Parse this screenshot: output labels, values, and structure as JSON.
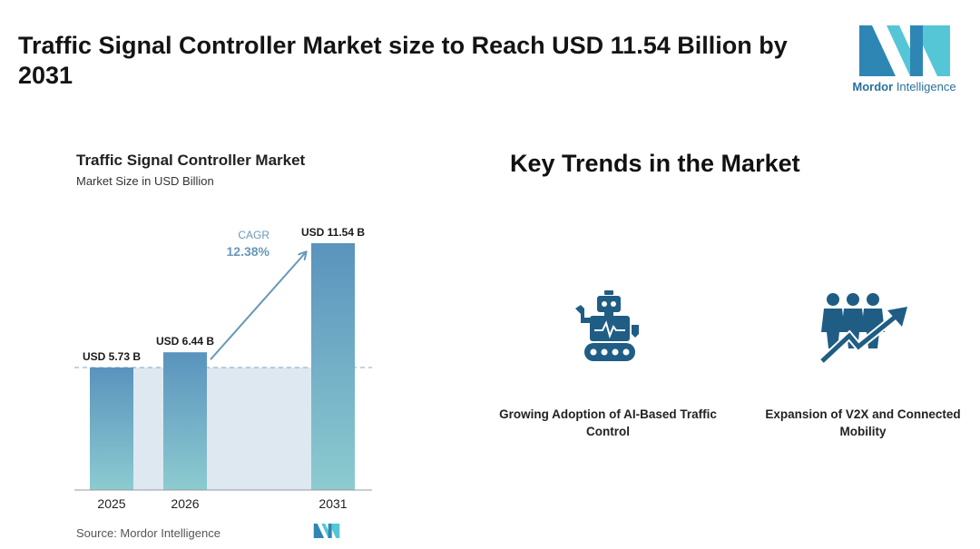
{
  "header": {
    "title": "Traffic Signal Controller Market size to Reach USD 11.54 Billion by 2031"
  },
  "logo": {
    "brand_bold": "Mordor",
    "brand_rest": "Intelligence"
  },
  "chart_data": {
    "type": "bar",
    "title": "Traffic Signal Controller Market",
    "subtitle": "Market Size in USD Billion",
    "categories": [
      "2025",
      "2026",
      "2031"
    ],
    "values": [
      5.73,
      6.44,
      11.54
    ],
    "value_labels": [
      "USD 5.73 B",
      "USD 6.44 B",
      "USD 11.54 B"
    ],
    "cagr_label": "CAGR",
    "cagr_value": "12.38%",
    "ylim": [
      0,
      11.54
    ],
    "colors": {
      "bar_top": "#5a93bd",
      "bar_bottom": "#8ccbd0",
      "band": "#dde8f1",
      "arrow": "#6a98b8"
    }
  },
  "source": "Source: Mordor Intelligence",
  "trends": {
    "title": "Key Trends in the Market",
    "items": [
      {
        "label": "Growing Adoption of AI-Based Traffic Control",
        "icon": "robot-icon"
      },
      {
        "label": "Expansion of V2X and Connected Mobility",
        "icon": "people-growth-icon"
      }
    ],
    "icon_color": "#1f5d85"
  }
}
